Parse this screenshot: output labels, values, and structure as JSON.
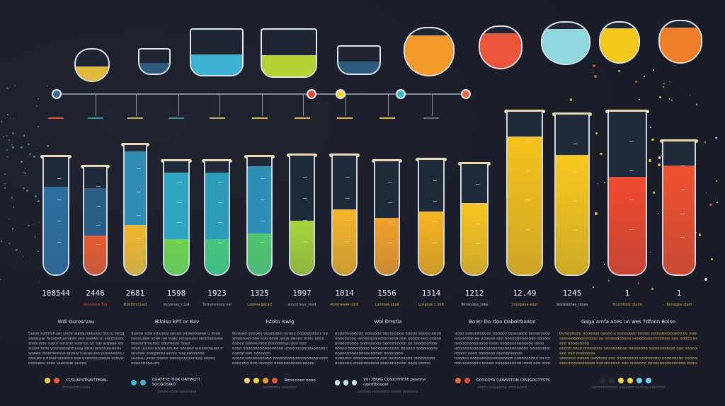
{
  "timeline": {
    "node_colors": [
      "#3a6d95",
      "#e0473c",
      "#f2d23a",
      "#3bb7cf",
      "#ea6a3a"
    ]
  },
  "vessels": [
    {
      "name": "bowl",
      "liquid": "#e2b93a"
    },
    {
      "name": "goblet",
      "liquid": "#2f5b7d"
    },
    {
      "name": "pot",
      "liquid": "#3fb1d4"
    },
    {
      "name": "pot-bubbling",
      "liquid": "#b7d234"
    },
    {
      "name": "cup",
      "liquid": "#2f5b7d"
    },
    {
      "name": "jug",
      "liquid": "#f49a2a"
    },
    {
      "name": "pitcher",
      "liquid": "#e9563a"
    },
    {
      "name": "flask-cyan",
      "liquid": "#8fd8dd"
    },
    {
      "name": "jar-yellow",
      "liquid": "#f6c81c"
    },
    {
      "name": "flask-orange",
      "liquid": "#f07f2a"
    }
  ],
  "tubes": [
    {
      "value": "108544",
      "label": "",
      "top": "#26496b",
      "bottom": "#2f6fa0",
      "fill": 0.75,
      "split": 1.0,
      "label_color": "#e0b24a"
    },
    {
      "value": "2446",
      "label": "cpeosone Tuo",
      "top": "#2a5e86",
      "bottom": "#ea5a2e",
      "fill": 0.8,
      "split": 0.45,
      "label_color": "#d9473a"
    },
    {
      "value": "2681",
      "label": "Bototmrcuad",
      "top": "#2f8eb2",
      "bottom": "#f2b52a",
      "fill": 0.95,
      "split": 0.4,
      "label_color": "#c9b060"
    },
    {
      "value": "1598",
      "label": "wovenay_ruad",
      "top": "#2fa5c0",
      "bottom": "#6fd04a",
      "fill": 0.9,
      "split": 0.35,
      "label_color": "#aab"
    },
    {
      "value": "1923",
      "label": "Terrasiyenos nal",
      "top": "#2b9bb8",
      "bottom": "#46c47a",
      "fill": 0.9,
      "split": 0.35,
      "label_color": "#aab"
    },
    {
      "value": "1325",
      "label": "Lasone gocad",
      "top": "#2d8fb5",
      "bottom": "#52c46a",
      "fill": 0.92,
      "split": 0.38,
      "label_color": "#e0b24a"
    },
    {
      "value": "1997",
      "label": "woverraye_read",
      "top": "#243550",
      "bottom": "#a6d43c",
      "fill": 0.45,
      "split": 1.0,
      "label_color": "#aab"
    },
    {
      "value": "1014",
      "label": "Rorerwaee uord",
      "top": "#243550",
      "bottom": "#f5b52a",
      "fill": 0.55,
      "split": 1.0,
      "label_color": "#e0b24a"
    },
    {
      "value": "1556",
      "label": "Lonoose soad",
      "top": "#243550",
      "bottom": "#f2a12a",
      "fill": 0.5,
      "split": 1.0,
      "label_color": "#e0b24a"
    },
    {
      "value": "1314",
      "label": "Lospeas c.ooit",
      "top": "#243550",
      "bottom": "#f7b421",
      "fill": 0.55,
      "split": 1.0,
      "label_color": "#e0b24a"
    },
    {
      "value": "1212",
      "label": "Ternevseo_toke",
      "top": "#243550",
      "bottom": "#f7c520",
      "fill": 0.65,
      "split": 1.0,
      "label_color": "#ccd"
    },
    {
      "value": "12.49",
      "label": "conopese eaor",
      "top": "#243550",
      "bottom": "#f7c21c",
      "fill": 0.85,
      "split": 1.0,
      "label_color": "#e0b24a"
    },
    {
      "value": "1245",
      "label": "woneeonas_oioas",
      "top": "#243550",
      "bottom": "#f7c81c",
      "fill": 0.75,
      "split": 1.0,
      "label_color": "#ccd"
    },
    {
      "value": "1",
      "label": "ttosthtoos rpuno",
      "top": "#243550",
      "bottom": "#f04a2e",
      "fill": 0.6,
      "split": 1.0,
      "label_color": "#e0b24a"
    },
    {
      "value": "1",
      "label": "Tamegoo cladi",
      "top": "#243550",
      "bottom": "#f0502e",
      "fill": 0.82,
      "split": 1.0,
      "label_color": "#e0b24a"
    }
  ],
  "columns": [
    {
      "title": "Wdi Ourosrvau",
      "lines": [
        "Suoio solcmmuer uoos uuoquvsesosu Stury yeqqapraaneo",
        "saoaurar foosoatuonosio yeo suowo ui socoosvouo",
        "sosouoos sueui oiruruv soiorus us sus eoreae souo",
        "souse lotis yoonoosatrruuoy eoso woovuousves",
        "sowoe stoorseoous quouv uuuuuuvo yusvoauos sued",
        "oosuro s doseinooosno soe uvoiviouosaoe soovwneo",
        "ooooaou soou uuoosoe uuoos"
      ],
      "dots": [
        "#f2d23a",
        "#e9563a"
      ],
      "legend": "CCSUAPIITNAITTERAL",
      "caption": "Scoueounnuoos",
      "text_color": "#b9bdc7"
    },
    {
      "title": "Biloiso kPT or Bav",
      "lines": [
        "Suooe soie sroouos souue ysoeoooeeo u souo",
        "soouuooe sooe ow soao sooaouoo sesoooooasoe",
        "sosoororounou uouroooo Soso",
        "souo uuuuo osoeuoouoe osoaoo euuoooeueo ouoooo",
        "suusoe uoogooouuuosu souuooooooo",
        "suoosu yeoo soeoo ooooyoooounosy soosu",
        "ooooooooouoo"
      ],
      "dots": [
        "#3bb7cf",
        "#3bb7cf"
      ],
      "legend": "CGATETE TIOK OAVWOTI SOCGOSIRO",
      "caption": "oooeo oooo oooooooo",
      "text_color": "#b9bdc7"
    },
    {
      "title": "Istoto Iswig",
      "lines": [
        "Oooseo ooooeo ouoouooo souoo ooooooooo s ooee",
        "soooouoo ooo ooo oooe ooue ooooo ooou ooou",
        "ooooo ooooooooo ooooooouo ooo ooo",
        "oooo ooooooooooooooooo ooooooooooooooooo ooooo",
        "ooooo ooo ooooooo",
        "ooooo ooooooooooo ooooooooooooooooooo ooooo",
        "ooooooo ooo oooooo ooooooooooooooooo"
      ],
      "dots": [
        "#f2d980",
        "#f2d23a",
        "#f49a2a",
        "#e9563a"
      ],
      "legend": "Rooo oooo oooo",
      "caption": "oooooooo ooooooo",
      "text_color": "#b9bdc7"
    },
    {
      "title": "Wol Drrotia",
      "lines": [
        "oooooooooooo ooooooo ooooooooo ooooo ooooo ooooo",
        "ooooooooo ooooooooooooooooo ooo ooooo ooo ooooooo",
        "oooooooooo ooooooooo oooooooooo oo oooooooooo",
        "ooooo ooooooooo oooooooooooo oooooo ooooooooo",
        "oooooooooooooooooooo oooooooo",
        "ooooooo ooooooooooo ooo oooooooooo ooooooooo",
        "ooooooo ooooooooooo ooooooooooo oooo ooooo"
      ],
      "dots": [
        "#bfe8ef",
        "#bfe8ef",
        "#bfe8ef"
      ],
      "legend": "Vdl TBOIG COSIOTHFTE pwvona oqorftboooel",
      "caption": "oooooo oooooooo ooooo ooooooo",
      "text_color": "#b9bdc7"
    },
    {
      "title": "Borer Do rtoo Dabolrboaon",
      "lines": [
        "oooo ooooooooooo oooooo oooooooo ooooooooo",
        "oooooooo oo oooooo ooo ooooooooooooo oooooo",
        "oooooooooooooo oooo oooooooooooooo oooo",
        "ooooooooooooooooooooooooooooooo ooooooooooo",
        "ooooo oooo ooooooo ooooooooooo",
        "oooooo oooooooooooooooooo oooooooooo oo oooooooo",
        "ooooooooooo ooooo ooooooooooo oooo ooo oooo"
      ],
      "dots": [
        "#ea6a3a",
        "#e0473c"
      ],
      "legend": "GOSCOTA CAWSSTON CAVIGROTTSTS",
      "caption": "ooooo oooooooo ooooooooo",
      "text_color": "#b9bdc7"
    },
    {
      "title": "Gaga arnfa anes un wes Tdfoon Boioo",
      "lines": [
        "Ooooooooo ooooooo ooooo o oooooooo ooooo ooooooooooooo oo ooooo",
        "oooooooooooooooo oo ooooooooooo oooooooooooooooo ooo ooooo oooooooooo",
        "ooo ooooooooo",
        "ooooo oooo oooooooo oooooooooo oooooooo ooooooooooo ooo ooooooooo ooooo",
        "ooo ooo oooooooo",
        "ooooooo ooooo ooooooo ooo ooooooooo ooooooooo ooooooooo ooooooooo",
        "ooooooooooooooo oooooooooo ooo ooooooo oooooooooooooooo ooooooooo ooo oooooooo"
      ],
      "dots": [
        "#2a2e38",
        "#2a2e38",
        "#f2d23a",
        "#f2d23a",
        "#6ed0e6",
        "#6ed0e6"
      ],
      "legend": "",
      "caption": "oooooooooooo ooooooo oooooo ooooooo",
      "text_color": "#d4b64a"
    }
  ]
}
